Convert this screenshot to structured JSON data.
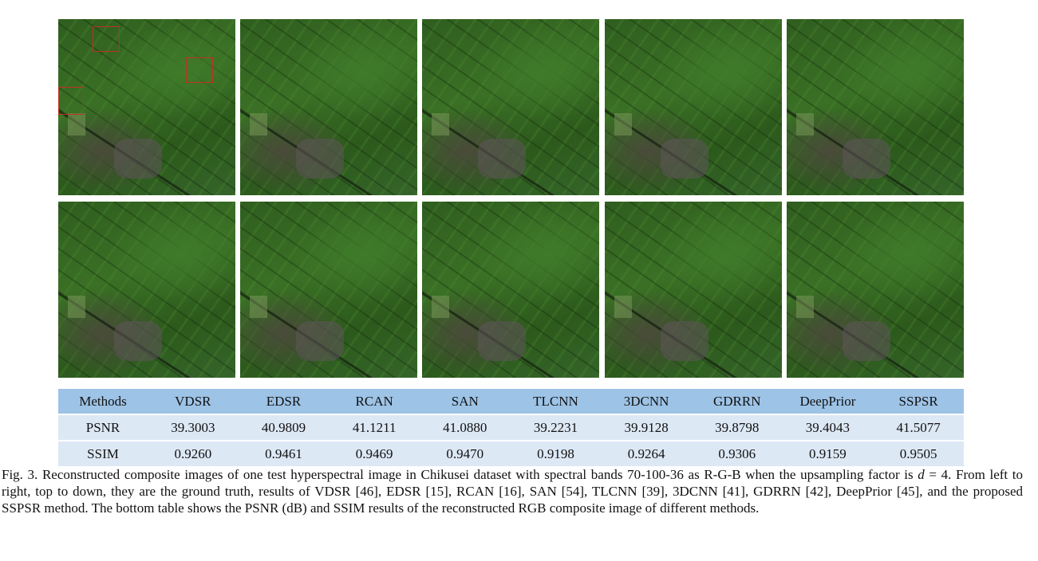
{
  "figure": {
    "images": [
      {
        "name": "ground-truth",
        "row": 0,
        "col": 0,
        "marked": true
      },
      {
        "name": "vdsr",
        "row": 0,
        "col": 1
      },
      {
        "name": "edsr",
        "row": 0,
        "col": 2
      },
      {
        "name": "rcan",
        "row": 0,
        "col": 3
      },
      {
        "name": "san",
        "row": 0,
        "col": 4
      },
      {
        "name": "tlcnn",
        "row": 1,
        "col": 0
      },
      {
        "name": "3dcnn",
        "row": 1,
        "col": 1
      },
      {
        "name": "gdrrn",
        "row": 1,
        "col": 2
      },
      {
        "name": "deepprior",
        "row": 1,
        "col": 3
      },
      {
        "name": "sspsr",
        "row": 1,
        "col": 4
      }
    ],
    "highlight_color": "#c0301f"
  },
  "table": {
    "header": [
      "Methods",
      "VDSR",
      "EDSR",
      "RCAN",
      "SAN",
      "TLCNN",
      "3DCNN",
      "GDRRN",
      "DeepPrior",
      "SSPSR"
    ],
    "rows": [
      [
        "PSNR",
        "39.3003",
        "40.9809",
        "41.1211",
        "41.0880",
        "39.2231",
        "39.9128",
        "39.8798",
        "39.4043",
        "41.5077"
      ],
      [
        "SSIM",
        "0.9260",
        "0.9461",
        "0.9469",
        "0.9470",
        "0.9198",
        "0.9264",
        "0.9306",
        "0.9159",
        "0.9505"
      ]
    ],
    "header_color": "#9dc3e6",
    "row_color": "#dde8f5"
  },
  "caption": {
    "part1": "Fig. 3.  Reconstructed composite images of one test hyperspectral image in Chikusei dataset with spectral bands 70-100-36 as R-G-B when the upsampling factor is ",
    "var": "d",
    "part2": " = 4. From left to right, top to down, they are the ground truth, results of VDSR [46], EDSR [15], RCAN [16], SAN [54], TLCNN [39], 3DCNN [41], GDRRN [42], DeepPrior [45], and the proposed SSPSR method. The bottom table shows the PSNR (dB) and SSIM results of the reconstructed RGB composite image of different methods."
  }
}
